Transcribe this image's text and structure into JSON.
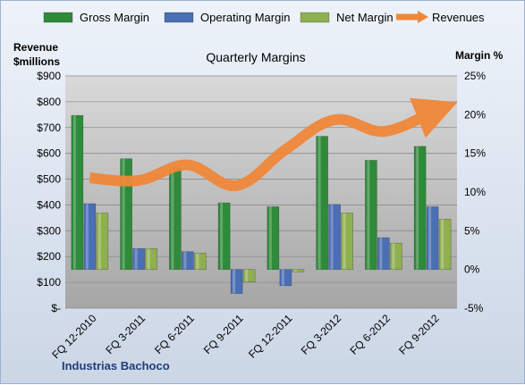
{
  "chart_data": {
    "type": "bar",
    "title": "Quarterly Margins",
    "y_left_label_line1": "Revenue",
    "y_left_label_line2": "$millions",
    "y_right_label": "Margin %",
    "categories": [
      "FQ 12-2010",
      "FQ 3-2011",
      "FQ 6-2011",
      "FQ 9-2011",
      "FQ 12-2011",
      "FQ 3-2012",
      "FQ 6-2012",
      "FQ 9-2012"
    ],
    "left_ticks": [
      "$-",
      "$100",
      "$200",
      "$300",
      "$400",
      "$500",
      "$600",
      "$700",
      "$800",
      "$900"
    ],
    "right_ticks": [
      "-5%",
      "0%",
      "5%",
      "10%",
      "15%",
      "20%",
      "25%"
    ],
    "y_left_lim": [
      0,
      900
    ],
    "y_right_lim": [
      -5,
      25
    ],
    "series": [
      {
        "name": "Gross Margin",
        "axis": "right",
        "kind": "bar",
        "color": "#2e8b3a",
        "values": [
          19.9,
          14.3,
          13.1,
          8.6,
          8.1,
          17.2,
          14.1,
          15.9
        ]
      },
      {
        "name": "Operating Margin",
        "axis": "right",
        "kind": "bar",
        "color": "#4a6fb5",
        "values": [
          8.5,
          2.7,
          2.3,
          -3.1,
          -2.1,
          8.4,
          4.1,
          8.1
        ]
      },
      {
        "name": "Net Margin",
        "axis": "right",
        "kind": "bar",
        "color": "#8fb050",
        "values": [
          7.3,
          2.7,
          2.1,
          -1.6,
          -0.3,
          7.3,
          3.4,
          6.5
        ]
      },
      {
        "name": "Revenues",
        "axis": "left",
        "kind": "line",
        "color": "#f0883a",
        "values": [
          505,
          495,
          555,
          475,
          615,
          730,
          685,
          760
        ]
      }
    ],
    "grid": true,
    "legend_position": "top",
    "source_label": "Industrias Bachoco"
  }
}
